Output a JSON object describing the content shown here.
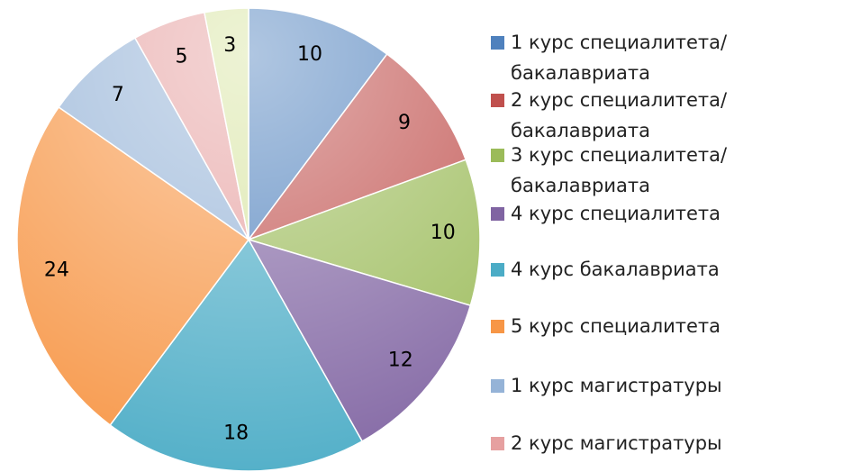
{
  "chart_data": {
    "type": "pie",
    "categories": [
      "1 курс специалитета/бакалавриата",
      "2 курс специалитета/бакалавриата",
      "3 курс специалитета/бакалавриата",
      "4 курс специалитета",
      "4 курс бакалавриата",
      "5 курс специалитета",
      "1 курс магистратуры",
      "2 курс магистратуры",
      null
    ],
    "values": [
      10,
      9,
      10,
      12,
      18,
      24,
      7,
      5,
      3
    ],
    "colors": [
      "#4f81bd",
      "#c0504d",
      "#9bbb59",
      "#8064a2",
      "#4bacc6",
      "#f79646",
      "#95b3d7",
      "#e6a0a0",
      "#d7e4a0"
    ],
    "legend": "right"
  }
}
